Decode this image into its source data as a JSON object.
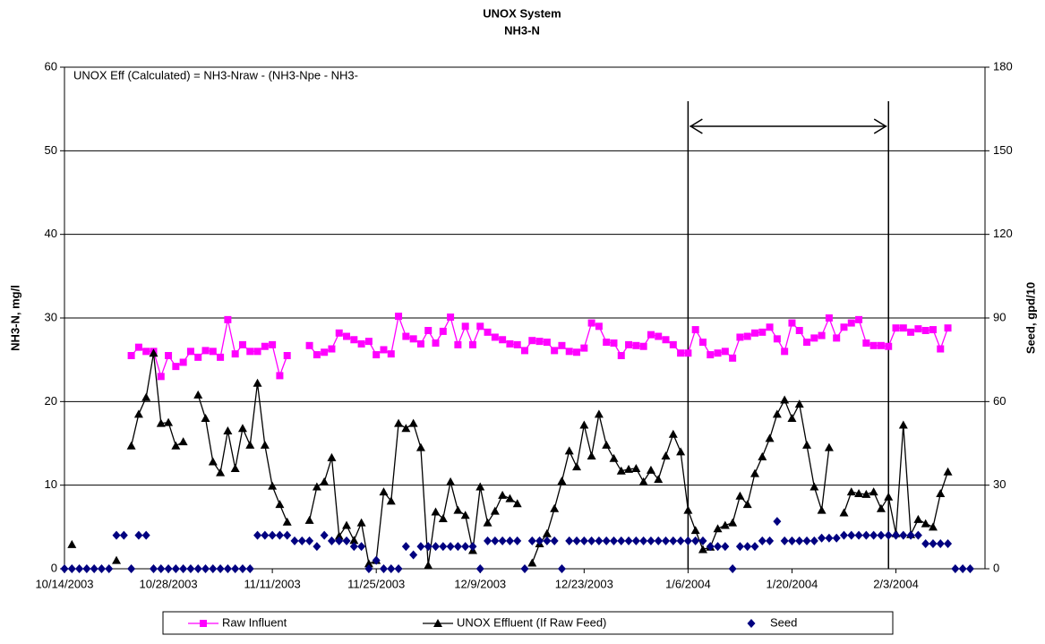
{
  "chart_data": {
    "type": "line",
    "title": "UNOX System",
    "subtitle": "NH3-N",
    "y_label": "NH3-N, mg/l",
    "y2_label": "Seed, gpd/10",
    "annotation": "UNOX Eff (Calculated) =  NH3-Nraw - (NH3-Npe - NH3-",
    "highlight_dates": [
      "1/6/2004",
      "2/2/2004"
    ],
    "x": [
      "10/14/2003",
      "10/15/2003",
      "10/16/2003",
      "10/17/2003",
      "10/18/2003",
      "10/19/2003",
      "10/20/2003",
      "10/21/2003",
      "10/22/2003",
      "10/23/2003",
      "10/24/2003",
      "10/25/2003",
      "10/26/2003",
      "10/27/2003",
      "10/28/2003",
      "10/29/2003",
      "10/30/2003",
      "10/31/2003",
      "11/1/2003",
      "11/2/2003",
      "11/3/2003",
      "11/4/2003",
      "11/5/2003",
      "11/6/2003",
      "11/7/2003",
      "11/8/2003",
      "11/9/2003",
      "11/10/2003",
      "11/11/2003",
      "11/12/2003",
      "11/13/2003",
      "11/14/2003",
      "11/15/2003",
      "11/16/2003",
      "11/17/2003",
      "11/18/2003",
      "11/19/2003",
      "11/20/2003",
      "11/21/2003",
      "11/22/2003",
      "11/23/2003",
      "11/24/2003",
      "11/25/2003",
      "11/26/2003",
      "11/27/2003",
      "11/28/2003",
      "11/29/2003",
      "11/30/2003",
      "12/1/2003",
      "12/2/2003",
      "12/3/2003",
      "12/4/2003",
      "12/5/2003",
      "12/6/2003",
      "12/7/2003",
      "12/8/2003",
      "12/9/2003",
      "12/10/2003",
      "12/11/2003",
      "12/12/2003",
      "12/13/2003",
      "12/14/2003",
      "12/15/2003",
      "12/16/2003",
      "12/17/2003",
      "12/18/2003",
      "12/19/2003",
      "12/20/2003",
      "12/21/2003",
      "12/22/2003",
      "12/23/2003",
      "12/24/2003",
      "12/25/2003",
      "12/26/2003",
      "12/27/2003",
      "12/28/2003",
      "12/29/2003",
      "12/30/2003",
      "12/31/2003",
      "1/1/2004",
      "1/2/2004",
      "1/3/2004",
      "1/4/2004",
      "1/5/2004",
      "1/6/2004",
      "1/7/2004",
      "1/8/2004",
      "1/9/2004",
      "1/10/2004",
      "1/11/2004",
      "1/12/2004",
      "1/13/2004",
      "1/14/2004",
      "1/15/2004",
      "1/16/2004",
      "1/17/2004",
      "1/18/2004",
      "1/19/2004",
      "1/20/2004",
      "1/21/2004",
      "1/22/2004",
      "1/23/2004",
      "1/24/2004",
      "1/25/2004",
      "1/26/2004",
      "1/27/2004",
      "1/28/2004",
      "1/29/2004",
      "1/30/2004",
      "1/31/2004",
      "2/1/2004",
      "2/2/2004",
      "2/3/2004",
      "2/4/2004",
      "2/5/2004",
      "2/6/2004",
      "2/7/2004",
      "2/8/2004",
      "2/9/2004",
      "2/10/2004",
      "2/11/2004",
      "2/12/2004",
      "2/13/2004",
      "2/14/2004"
    ],
    "xlim": [
      "10/14/2003",
      "2/15/2004"
    ],
    "xticks": [
      "10/14/2003",
      "10/28/2003",
      "11/11/2003",
      "11/25/2003",
      "12/9/2003",
      "12/23/2003",
      "1/6/2004",
      "1/20/2004",
      "2/3/2004"
    ],
    "ylim": [
      0,
      60
    ],
    "yticks": [
      0,
      10,
      20,
      30,
      40,
      50,
      60
    ],
    "y2lim": [
      0,
      180
    ],
    "y2ticks": [
      0,
      30,
      60,
      90,
      120,
      150,
      180
    ],
    "grid": true,
    "legend": "bottom",
    "series": [
      {
        "name": "Raw Influent",
        "color": "#ff00ff",
        "marker": "square",
        "line": true,
        "values": [
          null,
          null,
          null,
          null,
          null,
          null,
          null,
          null,
          null,
          25.5,
          26.5,
          26,
          26,
          23,
          25.5,
          24.2,
          24.7,
          26,
          25.3,
          26.1,
          26,
          25.3,
          29.8,
          25.7,
          26.8,
          26,
          26,
          26.6,
          26.8,
          23.1,
          25.5,
          null,
          null,
          26.7,
          25.6,
          25.9,
          26.3,
          28.2,
          27.8,
          27.4,
          26.9,
          27.2,
          25.6,
          26.2,
          25.7,
          30.2,
          27.8,
          27.5,
          26.9,
          28.5,
          27,
          28.4,
          30.1,
          26.8,
          29,
          26.8,
          29,
          28.3,
          27.7,
          27.4,
          26.9,
          26.8,
          26.1,
          27.3,
          27.2,
          27.1,
          26.1,
          26.7,
          26,
          25.9,
          26.4,
          29.4,
          29,
          27.1,
          27,
          25.5,
          26.8,
          26.7,
          26.6,
          28,
          27.8,
          27.4,
          26.8,
          25.8,
          25.8,
          28.6,
          27.1,
          25.6,
          25.8,
          26,
          25.2,
          27.7,
          27.8,
          28.2,
          28.3,
          28.9,
          27.5,
          26,
          29.4,
          28.5,
          27.1,
          27.6,
          27.9,
          30,
          27.6,
          28.9,
          29.4,
          29.8,
          27,
          26.7,
          26.7,
          26.6,
          28.8,
          28.8,
          28.3,
          28.7,
          28.5,
          28.6,
          26.3,
          28.8,
          null,
          null,
          null,
          null
        ]
      },
      {
        "name": "UNOX Effluent (If Raw Feed)",
        "color": "#000000",
        "marker": "triangle",
        "line": true,
        "values": [
          null,
          2.9,
          null,
          null,
          null,
          null,
          null,
          1,
          null,
          14.7,
          18.5,
          20.5,
          25.8,
          17.4,
          17.5,
          14.7,
          15.2,
          null,
          20.8,
          18,
          12.8,
          11.5,
          16.5,
          12,
          16.8,
          14.8,
          22.2,
          14.8,
          9.9,
          7.7,
          5.6,
          null,
          null,
          5.8,
          9.8,
          10.4,
          13.3,
          3.9,
          5.2,
          3.4,
          5.5,
          0.6,
          1,
          9.2,
          8.1,
          17.4,
          16.8,
          17.4,
          14.5,
          0.4,
          6.8,
          6,
          10.4,
          7,
          6.4,
          2.2,
          9.8,
          5.5,
          6.9,
          8.8,
          8.4,
          7.8,
          null,
          0.7,
          3,
          4.2,
          7.2,
          10.5,
          14.1,
          12.2,
          17.2,
          13.5,
          18.5,
          14.8,
          13.2,
          11.7,
          11.9,
          12,
          10.4,
          11.8,
          10.7,
          13.5,
          16.1,
          14,
          7,
          4.6,
          2.3,
          2.6,
          4.8,
          5.2,
          5.5,
          8.7,
          7.7,
          11.4,
          13.4,
          15.6,
          18.5,
          20.2,
          18,
          19.7,
          14.8,
          9.8,
          7,
          14.5,
          null,
          6.7,
          9.2,
          9,
          8.9,
          9.2,
          7.2,
          8.6,
          4.2,
          17.2,
          4.1,
          5.9,
          5.4,
          5,
          9,
          11.6,
          null,
          null,
          null,
          null
        ]
      },
      {
        "name": "Seed",
        "color": "#000080",
        "marker": "diamond",
        "line": false,
        "axis": "y2",
        "values": [
          0,
          0,
          0,
          0,
          0,
          0,
          0,
          12,
          12,
          0,
          12,
          12,
          0,
          0,
          0,
          0,
          0,
          0,
          0,
          0,
          0,
          0,
          0,
          0,
          0,
          0,
          12,
          12,
          12,
          12,
          12,
          10,
          10,
          10,
          8,
          12,
          10,
          10,
          10,
          8,
          8,
          0,
          3,
          0,
          0,
          0,
          8,
          5,
          8,
          8,
          8,
          8,
          8,
          8,
          8,
          8,
          0,
          10,
          10,
          10,
          10,
          10,
          0,
          10,
          10,
          10,
          10,
          0,
          10,
          10,
          10,
          10,
          10,
          10,
          10,
          10,
          10,
          10,
          10,
          10,
          10,
          10,
          10,
          10,
          10,
          10,
          10,
          8,
          8,
          8,
          0,
          8,
          8,
          8,
          10,
          10,
          17,
          10,
          10,
          10,
          10,
          10,
          11,
          11,
          11,
          12,
          12,
          12,
          12,
          12,
          12,
          12,
          12,
          12,
          12,
          12,
          9,
          9,
          9,
          9,
          0,
          0,
          0,
          null
        ]
      }
    ]
  }
}
